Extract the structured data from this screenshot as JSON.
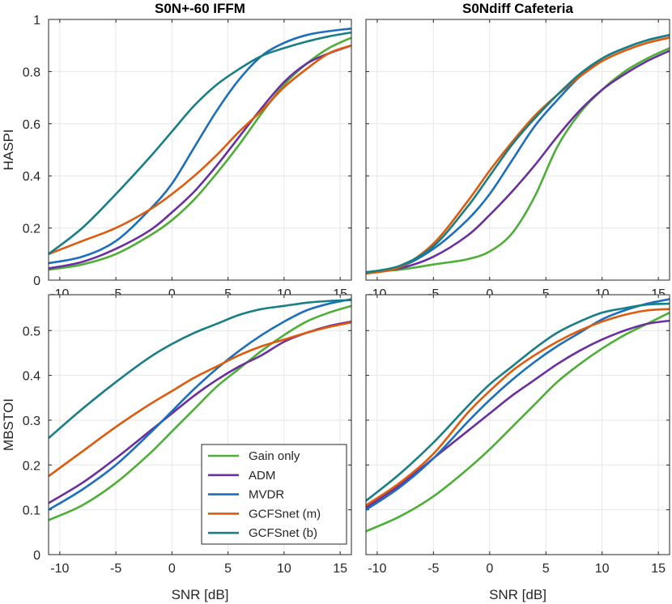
{
  "chart_data": [
    {
      "type": "line",
      "title": "S0N+-60 IFFM",
      "xlabel": "",
      "ylabel": "HASPI",
      "xlim": [
        -11,
        16
      ],
      "ylim": [
        0,
        1
      ],
      "xticks": [
        "-10",
        "-5",
        "0",
        "5",
        "10",
        "15"
      ],
      "yticks": [
        "0",
        "0.2",
        "0.4",
        "0.6",
        "0.8",
        "1"
      ],
      "grid": true,
      "x": [
        -11,
        -8,
        -5,
        -2,
        0,
        2,
        4,
        6,
        8,
        10,
        12,
        14,
        16
      ],
      "series": [
        {
          "name": "Gain only",
          "color": "#4daf35",
          "values": [
            0.04,
            0.06,
            0.1,
            0.17,
            0.23,
            0.31,
            0.41,
            0.52,
            0.64,
            0.75,
            0.83,
            0.89,
            0.93
          ]
        },
        {
          "name": "ADM",
          "color": "#6a2fa0",
          "values": [
            0.045,
            0.07,
            0.12,
            0.19,
            0.26,
            0.34,
            0.44,
            0.55,
            0.66,
            0.76,
            0.83,
            0.87,
            0.9
          ]
        },
        {
          "name": "MVDR",
          "color": "#1c6fbd",
          "values": [
            0.065,
            0.09,
            0.15,
            0.27,
            0.37,
            0.51,
            0.65,
            0.77,
            0.86,
            0.91,
            0.94,
            0.955,
            0.965
          ]
        },
        {
          "name": "GCFSnet (m)",
          "color": "#e05a0c",
          "values": [
            0.1,
            0.15,
            0.2,
            0.27,
            0.33,
            0.4,
            0.48,
            0.57,
            0.65,
            0.74,
            0.81,
            0.87,
            0.9
          ]
        },
        {
          "name": "GCFSnet (b)",
          "color": "#177f85",
          "values": [
            0.1,
            0.2,
            0.33,
            0.47,
            0.57,
            0.67,
            0.75,
            0.81,
            0.86,
            0.89,
            0.915,
            0.935,
            0.95
          ]
        }
      ]
    },
    {
      "type": "line",
      "title": "S0Ndiff Cafeteria",
      "xlabel": "",
      "ylabel": "",
      "xlim": [
        -11,
        16
      ],
      "ylim": [
        0,
        1
      ],
      "xticks": [
        "-10",
        "-5",
        "0",
        "5",
        "10",
        "15"
      ],
      "yticks": [],
      "grid": true,
      "x": [
        -11,
        -8,
        -5,
        -2,
        0,
        2,
        4,
        6,
        8,
        10,
        12,
        14,
        16
      ],
      "series": [
        {
          "name": "Gain only",
          "color": "#4daf35",
          "values": [
            0.03,
            0.04,
            0.06,
            0.08,
            0.11,
            0.18,
            0.32,
            0.51,
            0.64,
            0.73,
            0.8,
            0.85,
            0.89
          ]
        },
        {
          "name": "ADM",
          "color": "#6a2fa0",
          "values": [
            0.03,
            0.045,
            0.09,
            0.17,
            0.25,
            0.34,
            0.44,
            0.55,
            0.65,
            0.73,
            0.79,
            0.84,
            0.88
          ]
        },
        {
          "name": "MVDR",
          "color": "#1c6fbd",
          "values": [
            0.03,
            0.05,
            0.12,
            0.23,
            0.33,
            0.46,
            0.59,
            0.69,
            0.78,
            0.85,
            0.89,
            0.92,
            0.94
          ]
        },
        {
          "name": "GCFSnet (m)",
          "color": "#e05a0c",
          "values": [
            0.025,
            0.05,
            0.14,
            0.3,
            0.42,
            0.53,
            0.63,
            0.71,
            0.78,
            0.84,
            0.88,
            0.91,
            0.93
          ]
        },
        {
          "name": "GCFSnet (b)",
          "color": "#177f85",
          "values": [
            0.03,
            0.055,
            0.13,
            0.28,
            0.4,
            0.52,
            0.62,
            0.71,
            0.79,
            0.85,
            0.89,
            0.92,
            0.94
          ]
        }
      ]
    },
    {
      "type": "line",
      "title": "",
      "xlabel": "SNR [dB]",
      "ylabel": "MBSTOI",
      "xlim": [
        -11,
        16
      ],
      "ylim": [
        0,
        0.58
      ],
      "xticks": [
        "-10",
        "-5",
        "0",
        "5",
        "10",
        "15"
      ],
      "yticks": [
        "0",
        "0.1",
        "0.2",
        "0.3",
        "0.4",
        "0.5"
      ],
      "grid": true,
      "legend_position": "bottom-right",
      "x": [
        -11,
        -8,
        -5,
        -2,
        0,
        2,
        4,
        6,
        8,
        10,
        12,
        14,
        16
      ],
      "series": [
        {
          "name": "Gain only",
          "color": "#4daf35",
          "values": [
            0.077,
            0.11,
            0.16,
            0.225,
            0.275,
            0.325,
            0.375,
            0.415,
            0.455,
            0.49,
            0.52,
            0.54,
            0.555
          ]
        },
        {
          "name": "ADM",
          "color": "#6a2fa0",
          "values": [
            0.115,
            0.16,
            0.215,
            0.275,
            0.315,
            0.355,
            0.39,
            0.42,
            0.445,
            0.475,
            0.495,
            0.51,
            0.52
          ]
        },
        {
          "name": "MVDR",
          "color": "#1c6fbd",
          "values": [
            0.1,
            0.145,
            0.2,
            0.27,
            0.32,
            0.37,
            0.415,
            0.455,
            0.49,
            0.52,
            0.545,
            0.56,
            0.57
          ]
        },
        {
          "name": "GCFSnet (m)",
          "color": "#e05a0c",
          "values": [
            0.175,
            0.23,
            0.285,
            0.335,
            0.365,
            0.395,
            0.42,
            0.445,
            0.465,
            0.48,
            0.495,
            0.508,
            0.518
          ]
        },
        {
          "name": "GCFSnet (b)",
          "color": "#177f85",
          "values": [
            0.26,
            0.325,
            0.385,
            0.44,
            0.47,
            0.495,
            0.515,
            0.535,
            0.548,
            0.555,
            0.562,
            0.566,
            0.568
          ]
        }
      ]
    },
    {
      "type": "line",
      "title": "",
      "xlabel": "SNR [dB]",
      "ylabel": "",
      "xlim": [
        -11,
        16
      ],
      "ylim": [
        0,
        0.58
      ],
      "xticks": [
        "-10",
        "-5",
        "0",
        "5",
        "10",
        "15"
      ],
      "yticks": [],
      "grid": true,
      "x": [
        -11,
        -8,
        -5,
        -2,
        0,
        2,
        4,
        6,
        8,
        10,
        12,
        14,
        16
      ],
      "series": [
        {
          "name": "Gain only",
          "color": "#4daf35",
          "values": [
            0.052,
            0.085,
            0.13,
            0.19,
            0.235,
            0.285,
            0.335,
            0.385,
            0.425,
            0.46,
            0.49,
            0.515,
            0.54
          ]
        },
        {
          "name": "ADM",
          "color": "#6a2fa0",
          "values": [
            0.105,
            0.155,
            0.215,
            0.275,
            0.315,
            0.355,
            0.39,
            0.425,
            0.455,
            0.48,
            0.5,
            0.515,
            0.522
          ]
        },
        {
          "name": "MVDR",
          "color": "#1c6fbd",
          "values": [
            0.1,
            0.15,
            0.215,
            0.295,
            0.345,
            0.39,
            0.43,
            0.465,
            0.495,
            0.525,
            0.545,
            0.56,
            0.57
          ]
        },
        {
          "name": "GCFSnet (m)",
          "color": "#e05a0c",
          "values": [
            0.11,
            0.16,
            0.225,
            0.315,
            0.365,
            0.41,
            0.445,
            0.475,
            0.5,
            0.52,
            0.535,
            0.545,
            0.548
          ]
        },
        {
          "name": "GCFSnet (b)",
          "color": "#177f85",
          "values": [
            0.12,
            0.18,
            0.25,
            0.33,
            0.38,
            0.42,
            0.46,
            0.495,
            0.52,
            0.54,
            0.55,
            0.558,
            0.56
          ]
        }
      ]
    }
  ]
}
